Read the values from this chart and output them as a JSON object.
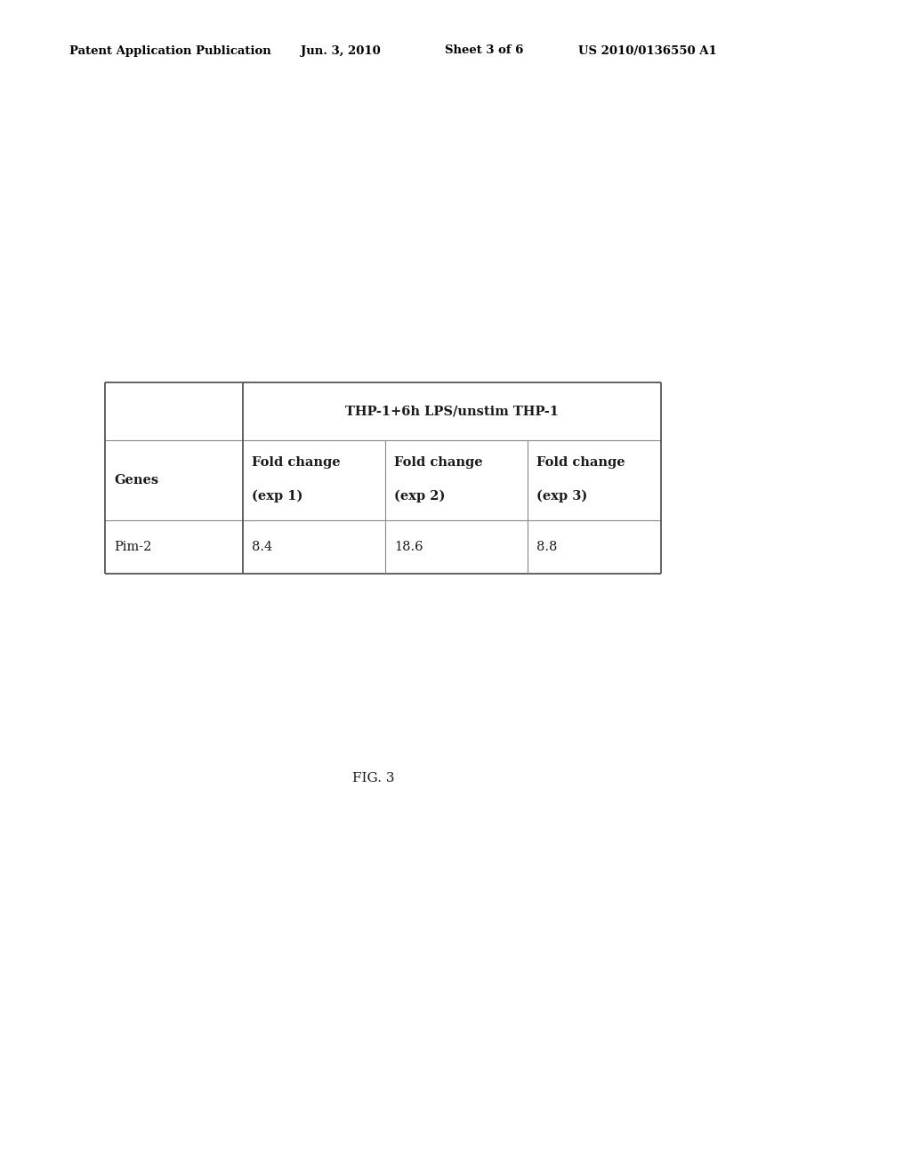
{
  "header_line1": "Patent Application Publication",
  "header_date": "Jun. 3, 2010",
  "header_sheet": "Sheet 3 of 6",
  "header_patent": "US 2010/0136550 A1",
  "figure_label": "FIG. 3",
  "table": {
    "col_header_span": "THP-1+6h LPS/unstim THP-1",
    "genes_label": "Genes",
    "fold_change": "Fold change",
    "exp_labels": [
      "(exp 1)",
      "(exp 2)",
      "(exp 3)"
    ],
    "data_gene": "Pim-2",
    "data_values": [
      "8.4",
      "18.6",
      "8.8"
    ]
  },
  "bg_color": "#ffffff",
  "text_color": "#1a1a1a",
  "header_text_color": "#000000",
  "table_border_color": "#555555",
  "table_inner_border_color": "#888888"
}
